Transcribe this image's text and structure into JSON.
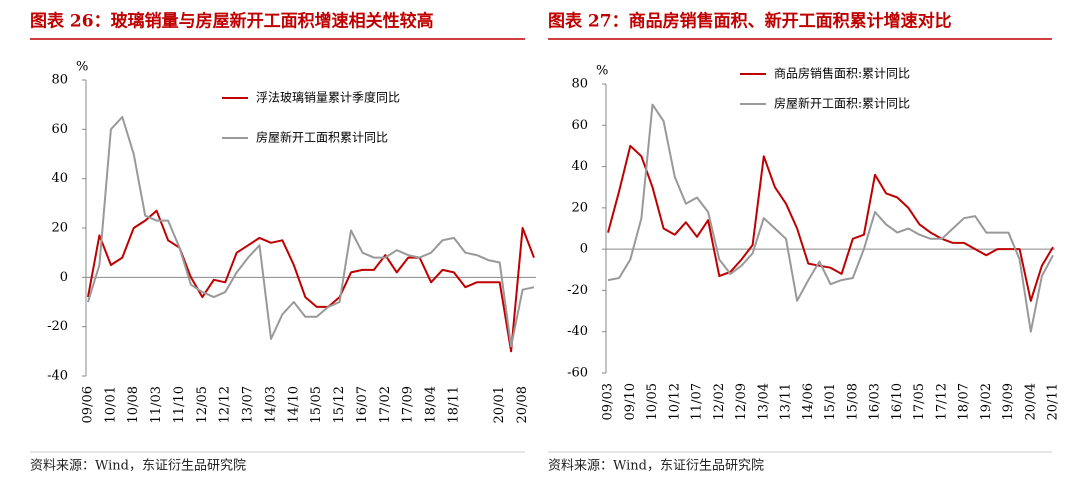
{
  "chart_data": [
    {
      "type": "line",
      "title": "图表 26：玻璃销量与房屋新开工面积增速相关性较高",
      "y_unit": "%",
      "source": "资料来源：Wind，东证衍生品研究院",
      "categories": [
        "09/06",
        null,
        "10/01",
        null,
        "10/08",
        null,
        "11/03",
        null,
        "11/10",
        null,
        "12/05",
        null,
        "12/12",
        null,
        "13/07",
        null,
        "14/03",
        null,
        "14/10",
        null,
        "15/05",
        null,
        "15/12",
        null,
        "16/07",
        null,
        "17/02",
        null,
        "17/09",
        null,
        "18/04",
        null,
        "18/11",
        null,
        null,
        null,
        "20/01",
        null,
        "20/08",
        null
      ],
      "series": [
        {
          "name": "浮法玻璃销量累计季度同比",
          "color": "#c00000",
          "values": [
            -8,
            17,
            5,
            8,
            20,
            23,
            27,
            15,
            12,
            0,
            -8,
            -1,
            -2,
            10,
            13,
            16,
            14,
            15,
            5,
            -8,
            -12,
            -12,
            -8,
            2,
            3,
            3,
            9,
            2,
            8,
            8,
            -2,
            3,
            2,
            -4,
            -2,
            -2,
            -2,
            -30,
            20,
            8
          ]
        },
        {
          "name": "房屋新开工面积累计同比",
          "color": "#999999",
          "values": [
            -10,
            5,
            60,
            65,
            50,
            25,
            23,
            23,
            12,
            -3,
            -6,
            -8,
            -6,
            2,
            8,
            13,
            -25,
            -15,
            -10,
            -16,
            -16,
            -12,
            -10,
            19,
            10,
            8,
            8,
            11,
            9,
            8,
            10,
            15,
            16,
            10,
            9,
            7,
            6,
            -28,
            -5,
            -4
          ]
        }
      ],
      "ylim": [
        -40,
        80
      ],
      "yticks": [
        -40,
        -20,
        0,
        20,
        40,
        60,
        80
      ]
    },
    {
      "type": "line",
      "title": "图表 27：商品房销售面积、新开工面积累计增速对比",
      "y_unit": "%",
      "source": "资料来源：Wind，东证衍生品研究院",
      "categories": [
        "09/03",
        null,
        "09/10",
        null,
        "10/05",
        null,
        "10/12",
        null,
        "11/07",
        null,
        "12/02",
        null,
        "12/09",
        null,
        "13/04",
        null,
        "13/11",
        null,
        "14/06",
        null,
        "15/01",
        null,
        "15/08",
        null,
        "16/03",
        null,
        "16/10",
        null,
        "17/05",
        null,
        "17/12",
        null,
        "18/07",
        null,
        "19/02",
        null,
        "19/09",
        null,
        "20/04",
        null,
        "20/11"
      ],
      "series": [
        {
          "name": "商品房销售面积:累计同比",
          "color": "#c00000",
          "values": [
            8,
            28,
            50,
            45,
            30,
            10,
            7,
            13,
            6,
            14,
            -13,
            -11,
            -5,
            2,
            45,
            30,
            22,
            10,
            -7,
            -8,
            -9,
            -12,
            5,
            7,
            36,
            27,
            25,
            20,
            12,
            8,
            5,
            3,
            3,
            0,
            -3,
            0,
            0,
            0,
            -25,
            -8,
            1
          ]
        },
        {
          "name": "房屋新开工面积:累计同比",
          "color": "#999999",
          "values": [
            -15,
            -14,
            -5,
            15,
            70,
            62,
            35,
            22,
            25,
            18,
            -5,
            -12,
            -8,
            -2,
            15,
            10,
            5,
            -25,
            -15,
            -6,
            -17,
            -15,
            -14,
            0,
            18,
            12,
            8,
            10,
            7,
            5,
            5,
            10,
            15,
            16,
            8,
            8,
            8,
            -5,
            -40,
            -13,
            -3
          ]
        }
      ],
      "ylim": [
        -60,
        80
      ],
      "yticks": [
        -60,
        -40,
        -20,
        0,
        20,
        40,
        60,
        80
      ]
    }
  ]
}
